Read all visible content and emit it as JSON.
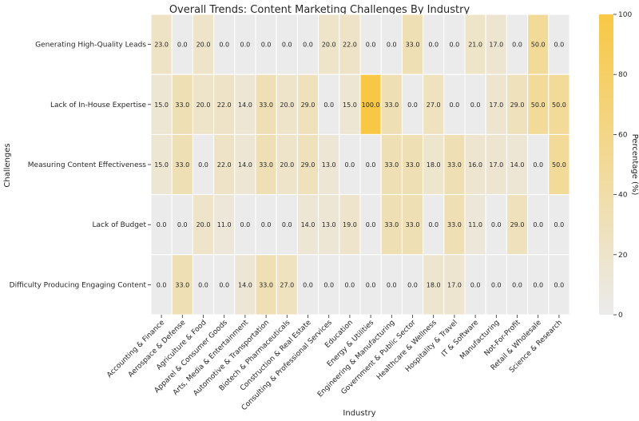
{
  "chart_data": {
    "type": "heatmap",
    "title": "Overall Trends: Content Marketing Challenges By Industry",
    "xlabel": "Industry",
    "ylabel": "Challenges",
    "colorbar_label": "Percentage (%)",
    "colorbar_ticks": [
      0,
      20,
      40,
      60,
      80,
      100
    ],
    "value_range": [
      0,
      100
    ],
    "colors": {
      "low": "#ebebeb",
      "high": "#f8c845"
    },
    "industries": [
      "Accounting & Finance",
      "Aerospace & Defense",
      "Agriculture & Food",
      "Apparel & Consumer Goods",
      "Arts, Media & Entertainment",
      "Automotive & Transportation",
      "Biotech & Pharmaceuticals",
      "Construction & Real Estate",
      "Consulting & Professional Services",
      "Education",
      "Energy & Utilities",
      "Engineering & Manufacturing",
      "Government & Public Sector",
      "Healthcare & Wellness",
      "Hospitality & Travel",
      "IT & Software",
      "Manufacturing",
      "Not-For-Profit",
      "Retail & Wholesale",
      "Science & Research"
    ],
    "challenges": [
      "Generating High-Quality Leads",
      "Lack of In-House Expertise",
      "Measuring Content Effectiveness",
      "Lack of Budget",
      "Difficulty Producing Engaging Content"
    ],
    "values": [
      [
        23.0,
        0.0,
        20.0,
        0.0,
        0.0,
        0.0,
        0.0,
        0.0,
        20.0,
        22.0,
        0.0,
        0.0,
        33.0,
        0.0,
        0.0,
        21.0,
        17.0,
        0.0,
        50.0,
        0.0
      ],
      [
        15.0,
        33.0,
        20.0,
        22.0,
        14.0,
        33.0,
        20.0,
        29.0,
        0.0,
        15.0,
        100.0,
        33.0,
        0.0,
        27.0,
        0.0,
        0.0,
        17.0,
        29.0,
        50.0,
        50.0
      ],
      [
        15.0,
        33.0,
        0.0,
        22.0,
        14.0,
        33.0,
        20.0,
        29.0,
        13.0,
        0.0,
        0.0,
        33.0,
        33.0,
        18.0,
        33.0,
        16.0,
        17.0,
        14.0,
        0.0,
        50.0
      ],
      [
        0.0,
        0.0,
        20.0,
        11.0,
        0.0,
        0.0,
        0.0,
        14.0,
        13.0,
        19.0,
        0.0,
        33.0,
        33.0,
        0.0,
        33.0,
        11.0,
        0.0,
        29.0,
        0.0,
        0.0
      ],
      [
        0.0,
        33.0,
        0.0,
        0.0,
        14.0,
        33.0,
        27.0,
        0.0,
        0.0,
        0.0,
        0.0,
        0.0,
        0.0,
        18.0,
        17.0,
        0.0,
        0.0,
        0.0,
        0.0,
        0.0
      ]
    ]
  }
}
